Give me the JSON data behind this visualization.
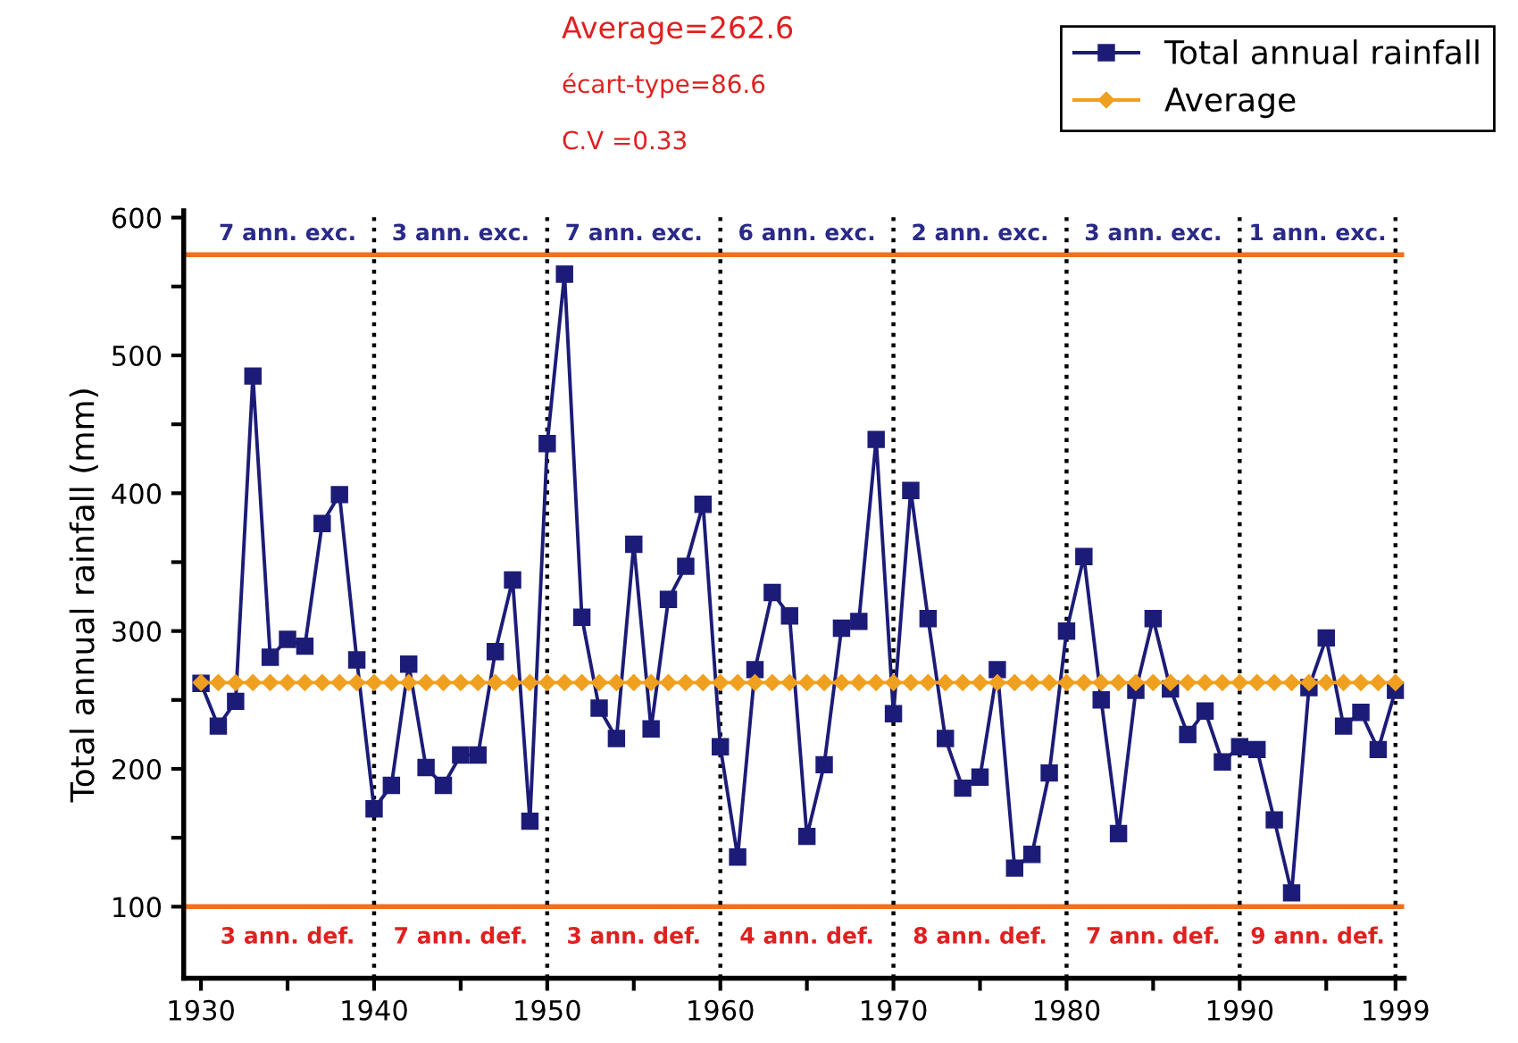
{
  "chart_data": {
    "type": "line",
    "ylabel": "Total annual rainfall (mm)",
    "x": [
      1930,
      1931,
      1932,
      1933,
      1934,
      1935,
      1936,
      1937,
      1938,
      1939,
      1940,
      1941,
      1942,
      1943,
      1944,
      1945,
      1946,
      1947,
      1948,
      1949,
      1950,
      1951,
      1952,
      1953,
      1954,
      1955,
      1956,
      1957,
      1958,
      1959,
      1960,
      1961,
      1962,
      1963,
      1964,
      1965,
      1966,
      1967,
      1968,
      1969,
      1970,
      1971,
      1972,
      1973,
      1974,
      1975,
      1976,
      1977,
      1978,
      1979,
      1980,
      1981,
      1982,
      1983,
      1984,
      1985,
      1986,
      1987,
      1988,
      1989,
      1990,
      1991,
      1992,
      1993,
      1994,
      1995,
      1996,
      1997,
      1998,
      1999
    ],
    "series": [
      {
        "name": "Total annual rainfall",
        "color": "#1c1c78",
        "marker": "square",
        "values": [
          262,
          231,
          249,
          485,
          281,
          294,
          289,
          378,
          399,
          279,
          171,
          188,
          276,
          201,
          188,
          210,
          210,
          285,
          337,
          162,
          436,
          559,
          310,
          244,
          222,
          363,
          229,
          323,
          347,
          392,
          216,
          136,
          272,
          328,
          311,
          151,
          203,
          302,
          307,
          439,
          240,
          402,
          309,
          222,
          186,
          194,
          272,
          128,
          138,
          197,
          300,
          354,
          250,
          153,
          257,
          309,
          258,
          225,
          242,
          205,
          216,
          214,
          163,
          110,
          259,
          295,
          231,
          241,
          214,
          257
        ]
      },
      {
        "name": "Average",
        "color": "#f0a020",
        "marker": "diamond",
        "values": [
          262.6,
          262.6,
          262.6,
          262.6,
          262.6,
          262.6,
          262.6,
          262.6,
          262.6,
          262.6,
          262.6,
          262.6,
          262.6,
          262.6,
          262.6,
          262.6,
          262.6,
          262.6,
          262.6,
          262.6,
          262.6,
          262.6,
          262.6,
          262.6,
          262.6,
          262.6,
          262.6,
          262.6,
          262.6,
          262.6,
          262.6,
          262.6,
          262.6,
          262.6,
          262.6,
          262.6,
          262.6,
          262.6,
          262.6,
          262.6,
          262.6,
          262.6,
          262.6,
          262.6,
          262.6,
          262.6,
          262.6,
          262.6,
          262.6,
          262.6,
          262.6,
          262.6,
          262.6,
          262.6,
          262.6,
          262.6,
          262.6,
          262.6,
          262.6,
          262.6,
          262.6,
          262.6,
          262.6,
          262.6,
          262.6,
          262.6,
          262.6,
          262.6,
          262.6,
          262.6
        ]
      }
    ],
    "xlim": [
      1929,
      1999.5
    ],
    "xticks": [
      1930,
      {
        "value": 1935,
        "label": null
      },
      1940,
      {
        "value": 1945,
        "label": null
      },
      1950,
      {
        "value": 1955,
        "label": null
      },
      1960,
      {
        "value": 1965,
        "label": null
      },
      1970,
      {
        "value": 1975,
        "label": null
      },
      1980,
      {
        "value": 1985,
        "label": null
      },
      1990,
      {
        "value": 1995,
        "label": null
      },
      1999
    ],
    "ylim": [
      48,
      605
    ],
    "yticks": [
      100,
      {
        "value": 150,
        "label": null
      },
      200,
      {
        "value": 250,
        "label": null
      },
      300,
      {
        "value": 350,
        "label": null
      },
      400,
      {
        "value": 450,
        "label": null
      },
      500,
      {
        "value": 550,
        "label": null
      },
      600
    ],
    "ref_lines": [
      {
        "axis": "y",
        "value": 573,
        "color": "#f07020",
        "line_style": "solid"
      },
      {
        "axis": "y",
        "value": 100,
        "color": "#f07020",
        "line_style": "solid"
      },
      {
        "axis": "x",
        "value": 1940,
        "color": "#000000",
        "line_style": "dotted"
      },
      {
        "axis": "x",
        "value": 1950,
        "color": "#000000",
        "line_style": "dotted"
      },
      {
        "axis": "x",
        "value": 1960,
        "color": "#000000",
        "line_style": "dotted"
      },
      {
        "axis": "x",
        "value": 1970,
        "color": "#000000",
        "line_style": "dotted"
      },
      {
        "axis": "x",
        "value": 1980,
        "color": "#000000",
        "line_style": "dotted"
      },
      {
        "axis": "x",
        "value": 1990,
        "color": "#000000",
        "line_style": "dotted"
      },
      {
        "axis": "x",
        "value": 1999,
        "color": "#000000",
        "line_style": "dotted"
      }
    ],
    "annotations": [
      "Average=262.6",
      "écart-type=86.6",
      "C.V =0.33",
      "7 ann. exc.",
      "3 ann. exc.",
      "7 ann. exc.",
      "6 ann. exc.",
      "2 ann. exc.",
      "3 ann. exc.",
      "1 ann. exc.",
      "3 ann. def.",
      "7 ann. def.",
      "3 ann. def.",
      "4 ann. def.",
      "8 ann. def.",
      "7 ann. def.",
      "9 ann. def."
    ],
    "legend": "top right",
    "grid": false,
    "line_style": "solid"
  }
}
